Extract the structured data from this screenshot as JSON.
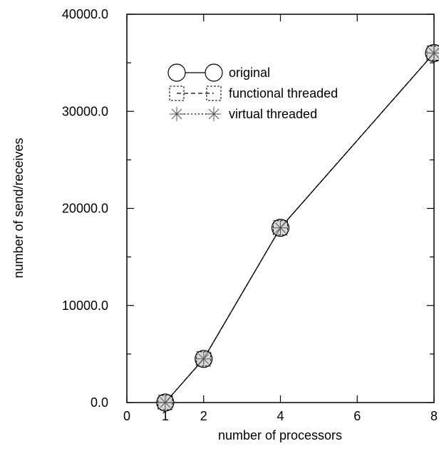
{
  "chart_data": {
    "type": "line",
    "title": "",
    "xlabel": "number of processors",
    "ylabel": "number of send/receives",
    "xlim": [
      0,
      8
    ],
    "ylim": [
      0,
      40000
    ],
    "x_ticks": [
      {
        "value": 0,
        "label": "0"
      },
      {
        "value": 2,
        "label": "2"
      },
      {
        "value": 4,
        "label": "4"
      },
      {
        "value": 6,
        "label": "6"
      },
      {
        "value": 8,
        "label": "8"
      }
    ],
    "x_extra_labels": [
      {
        "value": 1,
        "label": "1"
      }
    ],
    "y_ticks": [
      {
        "value": 0,
        "label": "0.0"
      },
      {
        "value": 10000,
        "label": "10000.0"
      },
      {
        "value": 20000,
        "label": "20000.0"
      },
      {
        "value": 30000,
        "label": "30000.0"
      },
      {
        "value": 40000,
        "label": "40000.0"
      }
    ],
    "grid": false,
    "legend_position": "top-left inside",
    "series": [
      {
        "name": "original",
        "marker": "circle",
        "line": "solid",
        "x": [
          1,
          2,
          4,
          8
        ],
        "y": [
          0,
          4500,
          18000,
          36000
        ]
      },
      {
        "name": "functional threaded",
        "marker": "square",
        "line": "dashed",
        "x": [
          1,
          2,
          4,
          8
        ],
        "y": [
          0,
          4500,
          18000,
          36000
        ]
      },
      {
        "name": "virtual threaded",
        "marker": "asterisk",
        "line": "dotted",
        "x": [
          1,
          2,
          4,
          8
        ],
        "y": [
          0,
          4500,
          18000,
          36000
        ]
      }
    ]
  }
}
